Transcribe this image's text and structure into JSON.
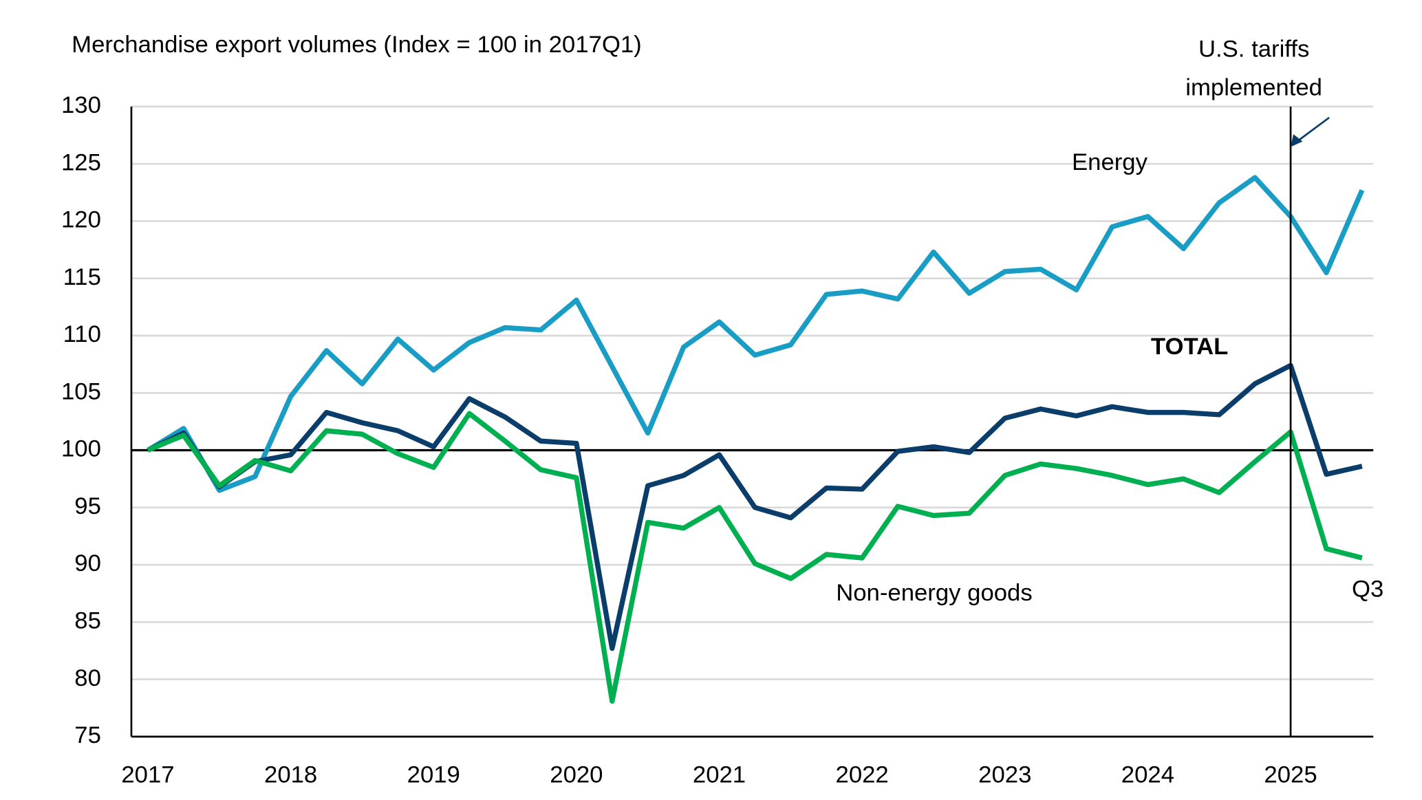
{
  "chart_data": {
    "type": "line",
    "y_axis_title": "Merchandise export volumes (Index = 100 in 2017Q1)",
    "categories": [
      "2017",
      null,
      null,
      null,
      "2018",
      null,
      null,
      null,
      "2019",
      null,
      null,
      null,
      "2020",
      null,
      null,
      null,
      "2021",
      null,
      null,
      null,
      "2022",
      null,
      null,
      null,
      "2023",
      null,
      null,
      null,
      "2024",
      null,
      null,
      null,
      "2025",
      null,
      null
    ],
    "series": [
      {
        "name": "Energy",
        "color": "#1a9dc4",
        "values": [
          100,
          101.9,
          96.5,
          97.7,
          104.7,
          108.7,
          105.8,
          109.7,
          107.0,
          109.4,
          110.7,
          110.5,
          113.1,
          107.3,
          101.5,
          109.0,
          111.2,
          108.3,
          109.2,
          113.6,
          113.9,
          113.2,
          117.3,
          113.7,
          115.6,
          115.8,
          114.0,
          119.5,
          120.4,
          117.6,
          121.6,
          123.8,
          120.4,
          115.5,
          122.7
        ]
      },
      {
        "name": "TOTAL",
        "color": "#0b3d6b",
        "values": [
          100,
          101.5,
          96.8,
          99.0,
          99.6,
          103.3,
          102.4,
          101.7,
          100.3,
          104.5,
          102.9,
          100.8,
          100.6,
          82.7,
          96.9,
          97.8,
          99.6,
          95.0,
          94.1,
          96.7,
          96.6,
          99.9,
          100.3,
          99.8,
          102.8,
          103.6,
          103.0,
          103.8,
          103.3,
          103.3,
          103.1,
          105.8,
          107.4,
          97.9,
          98.6
        ]
      },
      {
        "name": "Non-energy goods",
        "color": "#00b050",
        "values": [
          100,
          101.3,
          96.9,
          99.1,
          98.2,
          101.7,
          101.4,
          99.7,
          98.5,
          103.2,
          100.8,
          98.3,
          97.6,
          78.1,
          93.7,
          93.2,
          95.0,
          90.1,
          88.8,
          90.9,
          90.6,
          95.1,
          94.3,
          94.5,
          97.8,
          98.8,
          98.4,
          97.8,
          97.0,
          97.5,
          96.3,
          99.0,
          101.6,
          91.4,
          90.6
        ]
      }
    ],
    "ylim": [
      75,
      130
    ],
    "yticks": [
      75,
      80,
      85,
      90,
      95,
      100,
      105,
      110,
      115,
      120,
      125,
      130
    ],
    "grid": true,
    "reference_line": 100,
    "last_point_label": "Q3",
    "tariff_annotation": {
      "lines": [
        "U.S. tariffs",
        "implemented"
      ],
      "at": "2025"
    }
  }
}
